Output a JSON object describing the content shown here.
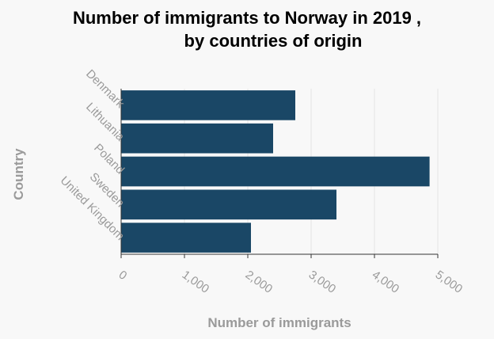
{
  "chart_data": {
    "type": "bar",
    "orientation": "horizontal",
    "title": [
      "Number of immigrants to Norway in 2019 ,",
      "by countries of origin"
    ],
    "xlabel": "Number of immigrants",
    "ylabel": "Country",
    "categories": [
      "Denmark",
      "Lithuania",
      "Poland",
      "Sweden",
      "United Kingdom"
    ],
    "values": [
      2750,
      2400,
      4870,
      3400,
      2050
    ],
    "xlim": [
      0,
      5000
    ],
    "xticks": [
      0,
      1000,
      2000,
      3000,
      4000,
      5000
    ],
    "xtick_labels": [
      "0",
      "1,000",
      "2,000",
      "3,000",
      "4,000",
      "5,000"
    ],
    "grid": "vertical",
    "legend": "none",
    "colors": {
      "bar": "#1a4766",
      "grid": "#e4e4e4",
      "axis": "#333333",
      "label": "#9a9a9a",
      "background": "#f8f8f8"
    }
  }
}
